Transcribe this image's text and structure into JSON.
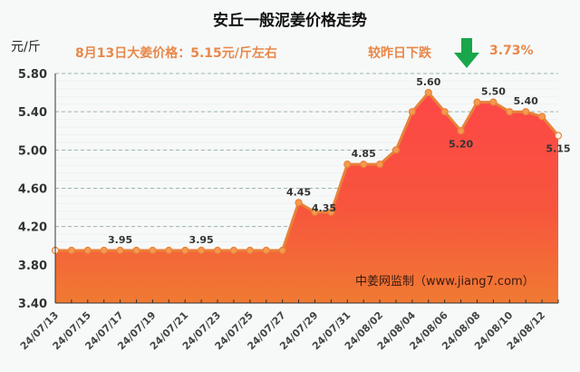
{
  "header": {
    "title": "安丘一般泥姜价格走势",
    "unit": "元/斤",
    "price_note": "8月13日大姜价格：5.15元/斤左右",
    "change_label": "较昨日下跌",
    "change_pct": "3.73%",
    "change_direction": "down",
    "accent_color": "#e8884a",
    "down_color": "#1aa64a"
  },
  "watermark": "中姜网监制（www.jiang7.com）",
  "chart_data": {
    "type": "area",
    "title": "安丘一般泥姜价格走势",
    "xlabel": "",
    "ylabel": "元/斤",
    "ylim": [
      3.4,
      5.8
    ],
    "yticks": [
      "5.80",
      "5.40",
      "5.00",
      "4.60",
      "4.20",
      "3.80",
      "3.40"
    ],
    "grid": true,
    "x": [
      "24/07/13",
      "24/07/14",
      "24/07/15",
      "24/07/16",
      "24/07/17",
      "24/07/18",
      "24/07/19",
      "24/07/20",
      "24/07/21",
      "24/07/22",
      "24/07/23",
      "24/07/24",
      "24/07/25",
      "24/07/26",
      "24/07/27",
      "24/07/28",
      "24/07/29",
      "24/07/30",
      "24/07/31",
      "24/08/01",
      "24/08/02",
      "24/08/03",
      "24/08/04",
      "24/08/05",
      "24/08/06",
      "24/08/07",
      "24/08/08",
      "24/08/09",
      "24/08/10",
      "24/08/11",
      "24/08/12",
      "24/08/13"
    ],
    "xticks": [
      "24/07/13",
      "24/07/15",
      "24/07/17",
      "24/07/19",
      "24/07/21",
      "24/07/23",
      "24/07/25",
      "24/07/27",
      "24/07/29",
      "24/07/31",
      "24/08/02",
      "24/08/04",
      "24/08/06",
      "24/08/08",
      "24/08/10",
      "24/08/12"
    ],
    "series": [
      {
        "name": "安丘一般泥姜价格",
        "values": [
          3.95,
          3.95,
          3.95,
          3.95,
          3.95,
          3.95,
          3.95,
          3.95,
          3.95,
          3.95,
          3.95,
          3.95,
          3.95,
          3.95,
          3.95,
          4.45,
          4.35,
          4.35,
          4.85,
          4.85,
          4.85,
          5.0,
          5.4,
          5.6,
          5.4,
          5.2,
          5.5,
          5.5,
          5.4,
          5.4,
          5.35,
          5.15
        ]
      }
    ],
    "annotations": [
      {
        "index": 4,
        "text": "3.95",
        "pos": "above"
      },
      {
        "index": 9,
        "text": "3.95",
        "pos": "above"
      },
      {
        "index": 15,
        "text": "4.45",
        "pos": "above"
      },
      {
        "index": 16,
        "text": "4.35",
        "pos": "right"
      },
      {
        "index": 19,
        "text": "4.85",
        "pos": "above"
      },
      {
        "index": 23,
        "text": "5.60",
        "pos": "above"
      },
      {
        "index": 25,
        "text": "5.20",
        "pos": "below"
      },
      {
        "index": 27,
        "text": "5.50",
        "pos": "above"
      },
      {
        "index": 29,
        "text": "5.40",
        "pos": "above"
      },
      {
        "index": 31,
        "text": "5.15",
        "pos": "below"
      }
    ]
  }
}
